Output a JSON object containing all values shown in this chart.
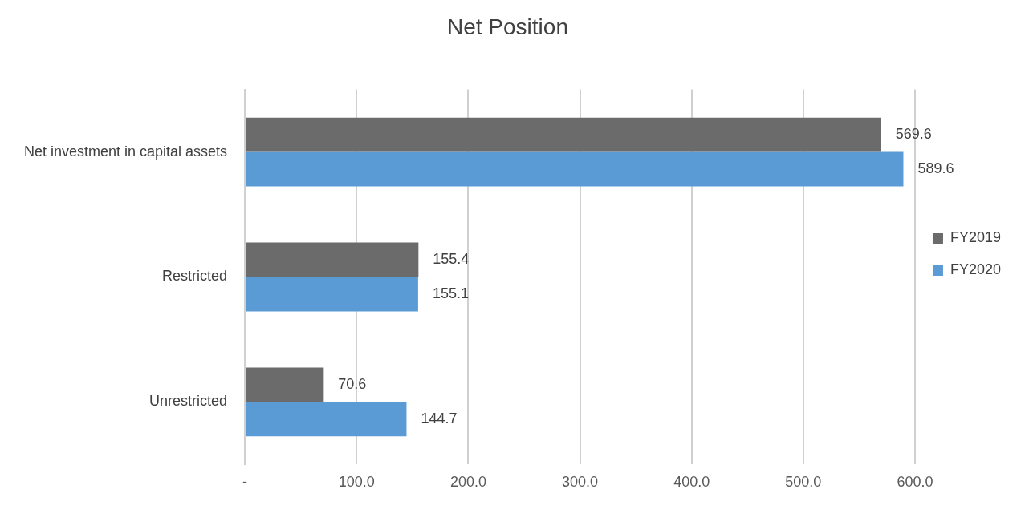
{
  "chart_data": {
    "type": "bar",
    "title": "Net Position",
    "orientation": "horizontal",
    "categories": [
      "Net investment in capital assets",
      "Restricted",
      "Unrestricted"
    ],
    "series": [
      {
        "name": "FY2019",
        "color": "#6b6b6b",
        "values": [
          569.6,
          155.4,
          70.6
        ]
      },
      {
        "name": "FY2020",
        "color": "#5b9bd5",
        "values": [
          589.6,
          155.1,
          144.7
        ]
      }
    ],
    "xlim": [
      0,
      600
    ],
    "xticks": [
      {
        "value": 0,
        "label": "-"
      },
      {
        "value": 100,
        "label": "100.0"
      },
      {
        "value": 200,
        "label": "200.0"
      },
      {
        "value": 300,
        "label": "300.0"
      },
      {
        "value": 400,
        "label": "400.0"
      },
      {
        "value": 500,
        "label": "500.0"
      },
      {
        "value": 600,
        "label": "600.0"
      }
    ],
    "grid": "x",
    "legend": "right",
    "data_labels": true
  }
}
